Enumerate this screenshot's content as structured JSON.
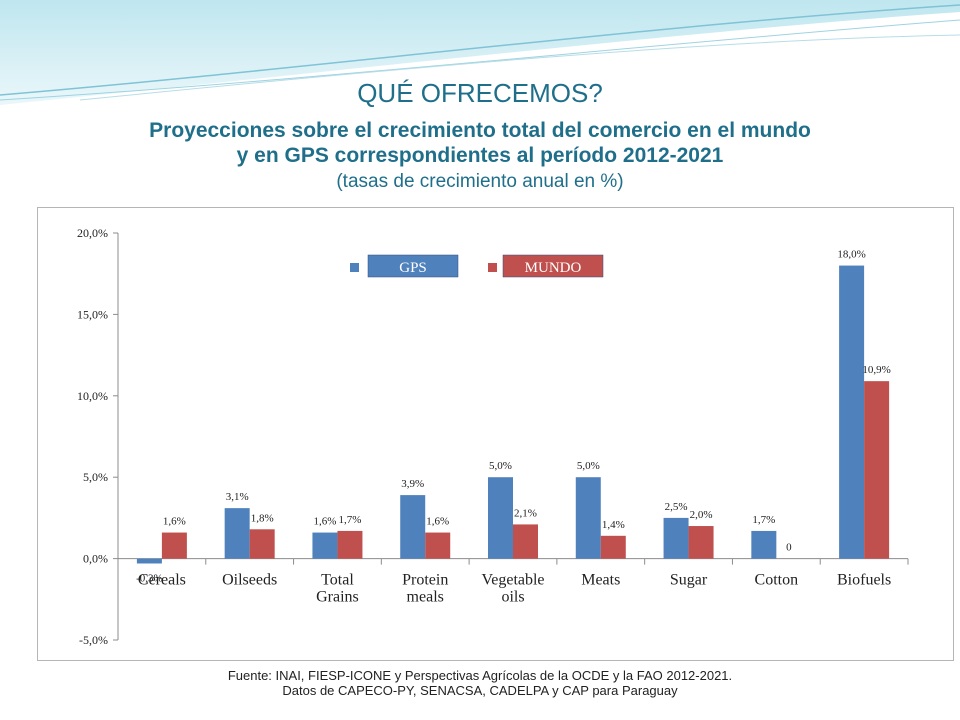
{
  "slide": {
    "title": "QUÉ OFRECEMOS?",
    "subtitle_line1": "Proyecciones sobre el crecimiento total del comercio en el mundo",
    "subtitle_line2": "y en GPS correspondientes al período 2012-2021",
    "units_note": "(tasas de crecimiento anual en %)",
    "source_line1": "Fuente: INAI, FIESP-ICONE y Perspectivas Agrícolas de la OCDE y la FAO 2012-2021.",
    "source_line2": "Datos de CAPECO-PY, SENACSA, CADELPA y CAP para Paraguay"
  },
  "chart_data": {
    "type": "bar",
    "categories": [
      "Cereals",
      "Oilseeds",
      "Total Grains",
      "Protein meals",
      "Vegetable oils",
      "Meats",
      "Sugar",
      "Cotton",
      "Biofuels"
    ],
    "category_lines": [
      [
        "Cereals"
      ],
      [
        "Oilseeds"
      ],
      [
        "Total",
        "Grains"
      ],
      [
        "Protein",
        "meals"
      ],
      [
        "Vegetable",
        "oils"
      ],
      [
        "Meats"
      ],
      [
        "Sugar"
      ],
      [
        "Cotton"
      ],
      [
        "Biofuels"
      ]
    ],
    "series": [
      {
        "name": "GPS",
        "color": "#4f81bd",
        "values": [
          -0.3,
          3.1,
          1.6,
          3.9,
          5.0,
          5.0,
          2.5,
          1.7,
          18.0
        ],
        "labels": [
          "-0,3%",
          "3,1%",
          "1,6%",
          "3,9%",
          "5,0%",
          "5,0%",
          "2,5%",
          "1,7%",
          "18,0%"
        ]
      },
      {
        "name": "MUNDO",
        "color": "#c0504d",
        "values": [
          1.6,
          1.8,
          1.7,
          1.6,
          2.1,
          1.4,
          2.0,
          0,
          10.9
        ],
        "labels": [
          "1,6%",
          "1,8%",
          "1,7%",
          "1,6%",
          "2,1%",
          "1,4%",
          "2,0%",
          "0",
          "10,9%"
        ]
      }
    ],
    "ylim": [
      -5,
      20
    ],
    "yticks": [
      -5,
      0,
      5,
      10,
      15,
      20
    ],
    "ytick_labels": [
      "-5,0%",
      "0,0%",
      "5,0%",
      "10,0%",
      "15,0%",
      "20,0%"
    ],
    "grid": false,
    "legend_position": "top-center"
  }
}
